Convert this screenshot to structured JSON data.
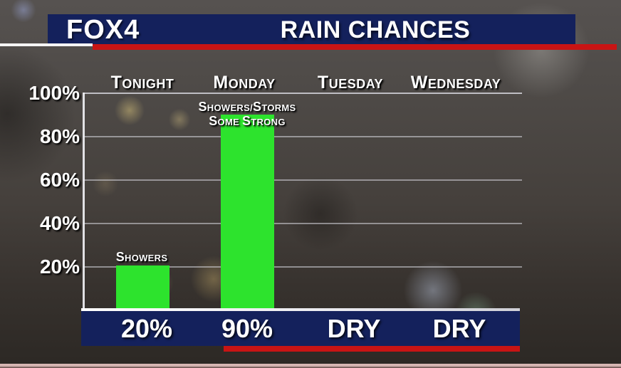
{
  "header": {
    "station": "FOX4",
    "title": "RAIN CHANCES"
  },
  "chart_data": {
    "type": "bar",
    "title": "RAIN CHANCES",
    "categories": [
      "Tonight",
      "Monday",
      "Tuesday",
      "Wednesday"
    ],
    "values": [
      20,
      90,
      0,
      0
    ],
    "value_labels": [
      "20%",
      "90%",
      "DRY",
      "DRY"
    ],
    "annotations": [
      {
        "category": "Tonight",
        "lines": [
          "Showers"
        ]
      },
      {
        "category": "Monday",
        "lines": [
          "Showers/Storms",
          "Some Strong"
        ]
      }
    ],
    "yticks": [
      "100%",
      "80%",
      "60%",
      "40%",
      "20%"
    ],
    "ylim": [
      0,
      100
    ],
    "grid": true,
    "legend_position": "none",
    "bar_color": "#2de32d",
    "accent_navy": "#14215c",
    "accent_red": "#c81414"
  }
}
